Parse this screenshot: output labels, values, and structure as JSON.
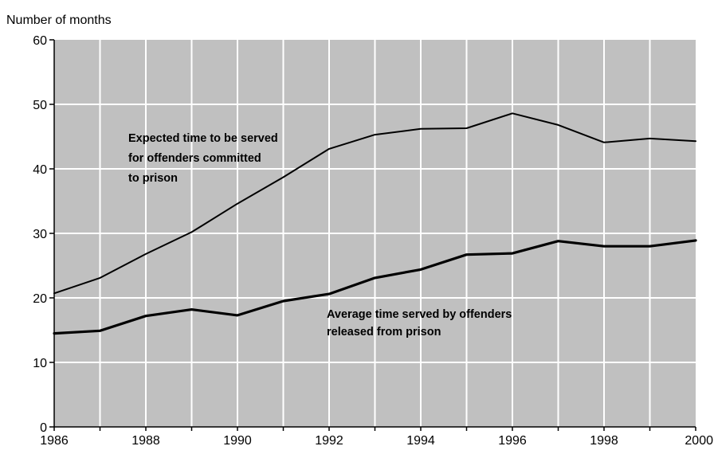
{
  "chart_data": {
    "type": "line",
    "ylabel": "Number of months",
    "xlim": [
      1986,
      2000
    ],
    "ylim": [
      0,
      60
    ],
    "x_ticks": [
      "1986",
      "1988",
      "1990",
      "1992",
      "1994",
      "1996",
      "1998",
      "2000"
    ],
    "y_ticks": [
      "0",
      "10",
      "20",
      "30",
      "40",
      "50",
      "60"
    ],
    "grid": true,
    "colors": {
      "plot_background": "#c0c0c0",
      "grid": "#ffffff",
      "line": "#000000"
    },
    "x": [
      1986,
      1987,
      1988,
      1989,
      1990,
      1991,
      1992,
      1993,
      1994,
      1995,
      1996,
      1997,
      1998,
      1999,
      2000
    ],
    "series": [
      {
        "values": [
          20.7,
          23.1,
          26.8,
          30.2,
          34.6,
          38.7,
          43.1,
          45.3,
          46.2,
          46.3,
          48.6,
          46.8,
          44.1,
          44.7,
          44.3
        ]
      },
      {
        "values": [
          14.5,
          14.9,
          17.2,
          18.2,
          17.3,
          19.5,
          20.6,
          23.1,
          24.4,
          26.7,
          26.9,
          28.8,
          28.0,
          28.0,
          28.9
        ]
      }
    ],
    "annotations": [
      {
        "lines": [
          "Expected time to be served",
          "for offenders committed",
          "to prison"
        ]
      },
      {
        "lines": [
          "Average time served by offenders",
          "released from prison"
        ]
      }
    ]
  }
}
